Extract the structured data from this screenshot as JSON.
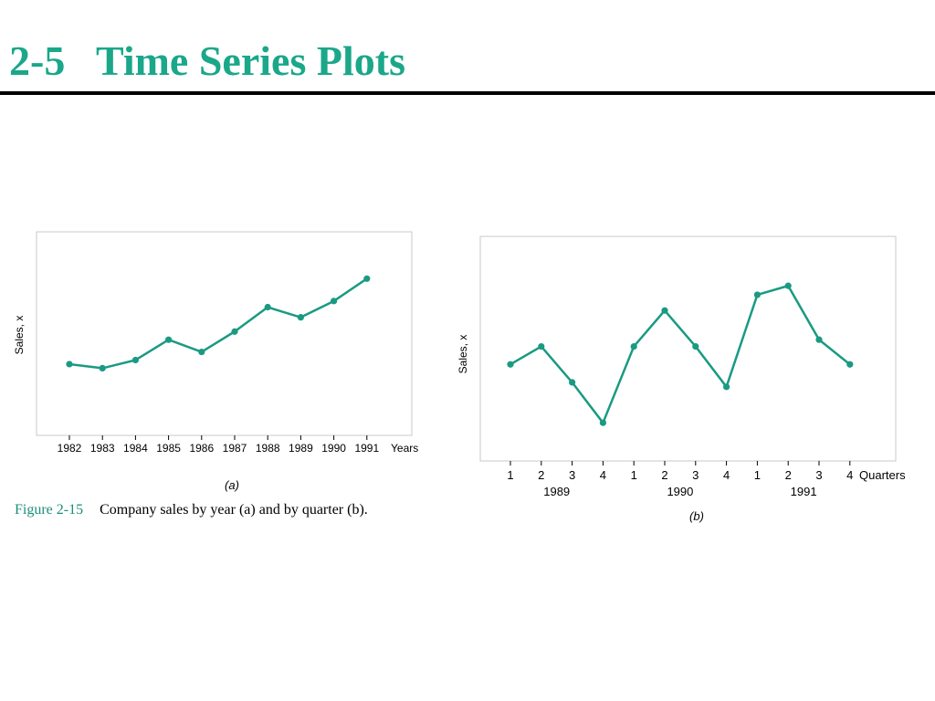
{
  "slide": {
    "title": "2-5   Time Series Plots",
    "title_color": "#1aa78a"
  },
  "caption": {
    "label": "Figure 2-15",
    "text": "Company sales by year (a) and by quarter (b).",
    "label_color": "#1a8f7a"
  },
  "line_color": "#1a9a82",
  "chart_data": [
    {
      "type": "line",
      "panel_label": "(a)",
      "ylabel": "Sales, x",
      "xlabel": "Years",
      "categories": [
        "1982",
        "1983",
        "1984",
        "1985",
        "1986",
        "1987",
        "1988",
        "1989",
        "1990",
        "1991"
      ],
      "values": [
        35,
        33,
        37,
        47,
        41,
        51,
        63,
        58,
        66,
        77
      ],
      "ylim": [
        0,
        100
      ],
      "grid": false
    },
    {
      "type": "line",
      "panel_label": "(b)",
      "ylabel": "Sales, x",
      "xlabel": "Quarters",
      "categories": [
        "1",
        "2",
        "3",
        "4",
        "1",
        "2",
        "3",
        "4",
        "1",
        "2",
        "3",
        "4"
      ],
      "year_groups": [
        "1989",
        "1990",
        "1991"
      ],
      "values": [
        43,
        51,
        35,
        17,
        51,
        67,
        51,
        33,
        74,
        78,
        54,
        43
      ],
      "ylim": [
        0,
        100
      ],
      "grid": false
    }
  ]
}
